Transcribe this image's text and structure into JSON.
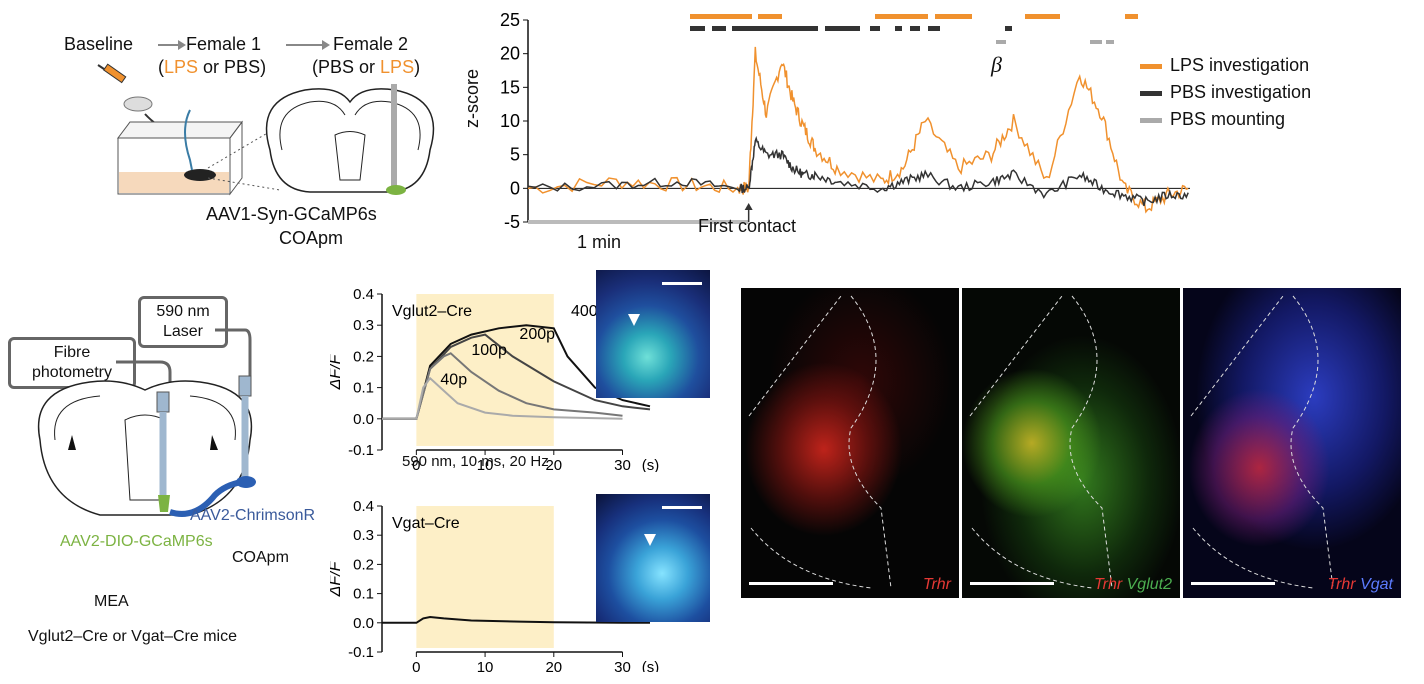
{
  "panel_a": {
    "baseline": "Baseline",
    "female1": "Female 1",
    "female1_sub_lps": "LPS",
    "female1_sub_rest": "or PBS",
    "female2": "Female 2",
    "female2_sub_rest": "PBS or",
    "female2_sub_lps": "LPS",
    "virus": "AAV1-Syn-GCaMP6s",
    "region": "COApm"
  },
  "panel_b": {
    "ylabel": "z-score",
    "yticks": [
      "25",
      "20",
      "15",
      "10",
      "5",
      "0",
      "-5"
    ],
    "beta": "β",
    "legend": [
      {
        "label": "LPS investigation",
        "color": "#f0912e"
      },
      {
        "label": "PBS investigation",
        "color": "#333333"
      },
      {
        "label": "PBS mounting",
        "color": "#aaaaaa"
      }
    ],
    "scale_label": "1 min",
    "first_contact": "First contact"
  },
  "panel_c": {
    "laser": "590 nm Laser",
    "fibre": "Fibre photometry",
    "virus1": "AAV2-DIO-GCaMP6s",
    "virus2": "AAV2-ChrimsonR",
    "region": "COApm",
    "area": "MEA",
    "mice": "Vglut2–Cre or Vgat–Cre mice"
  },
  "panel_d": {
    "ylabel": "ΔF/F",
    "title": "Vglut2–Cre",
    "yticks": [
      "0.4",
      "0.3",
      "0.2",
      "0.1",
      "0.0",
      "-0.1"
    ],
    "xticks": [
      "0",
      "10",
      "20",
      "30"
    ],
    "xunit": "(s)",
    "pulses": [
      "400p",
      "200p",
      "100p",
      "40p"
    ],
    "stim": "590 nm, 10 ms, 20 Hz"
  },
  "panel_e": {
    "ylabel": "ΔF/F",
    "title": "Vgat–Cre",
    "yticks": [
      "0.4",
      "0.3",
      "0.2",
      "0.1",
      "0.0",
      "-0.1"
    ],
    "xticks": [
      "0",
      "10",
      "20",
      "30"
    ],
    "xunit": "(s)"
  },
  "panel_f": {
    "labels": [
      {
        "a": "Trhr",
        "b": "",
        "c": ""
      },
      {
        "a": "Trhr",
        "b": "Vglut2",
        "c": ""
      },
      {
        "a": "Trhr",
        "b": "Vgat",
        "c": ""
      }
    ]
  },
  "chart_data": [
    {
      "type": "line",
      "xlabel": "",
      "ylabel": "z-score",
      "ylim": [
        -5,
        25
      ],
      "series": [
        {
          "name": "LPS investigation",
          "x": [
            -100,
            -60,
            -30,
            -5,
            0,
            3,
            8,
            15,
            20,
            25,
            30,
            40,
            60,
            70,
            80,
            95,
            110,
            120,
            135,
            150,
            160,
            170,
            180,
            190,
            200
          ],
          "values": [
            0,
            1,
            0.5,
            0,
            0,
            20,
            11,
            19,
            13,
            9,
            6,
            3,
            1,
            3,
            10,
            3,
            5,
            10,
            1,
            17,
            11,
            0,
            -3,
            -1,
            0
          ]
        },
        {
          "name": "PBS investigation",
          "x": [
            -100,
            -60,
            -30,
            -5,
            0,
            3,
            8,
            15,
            20,
            25,
            30,
            40,
            60,
            70,
            80,
            95,
            110,
            120,
            135,
            150,
            160,
            170,
            180,
            190,
            200
          ],
          "values": [
            0,
            0.5,
            1,
            0,
            0,
            7,
            5,
            5,
            3,
            2,
            2,
            1,
            0,
            1,
            2,
            0,
            1,
            2,
            -1,
            2,
            0,
            -1,
            -2,
            -1,
            -1
          ]
        }
      ]
    },
    {
      "type": "line",
      "title": "Vglut2–Cre",
      "ylabel": "ΔF/F",
      "xlim": [
        -5,
        34
      ],
      "ylim": [
        -0.1,
        0.4
      ],
      "series": [
        {
          "name": "400p",
          "x": [
            0,
            2,
            5,
            8,
            12,
            16,
            20,
            22,
            26,
            30,
            34
          ],
          "values": [
            0,
            0.17,
            0.24,
            0.27,
            0.29,
            0.3,
            0.29,
            0.2,
            0.1,
            0.06,
            0.04
          ]
        },
        {
          "name": "200p",
          "x": [
            0,
            2,
            5,
            8,
            10,
            14,
            20,
            26,
            30,
            34
          ],
          "values": [
            0,
            0.16,
            0.23,
            0.26,
            0.27,
            0.2,
            0.12,
            0.06,
            0.04,
            0.03
          ]
        },
        {
          "name": "100p",
          "x": [
            0,
            2,
            4,
            5,
            8,
            12,
            16,
            20,
            26,
            30
          ],
          "values": [
            0,
            0.16,
            0.2,
            0.21,
            0.15,
            0.09,
            0.05,
            0.03,
            0.02,
            0.01
          ]
        },
        {
          "name": "40p",
          "x": [
            0,
            1,
            2,
            4,
            6,
            10,
            14,
            20,
            30
          ],
          "values": [
            0,
            0.1,
            0.13,
            0.09,
            0.05,
            0.02,
            0.01,
            0.005,
            0
          ]
        }
      ]
    },
    {
      "type": "line",
      "title": "Vgat–Cre",
      "ylabel": "ΔF/F",
      "xlim": [
        -5,
        34
      ],
      "ylim": [
        -0.1,
        0.4
      ],
      "series": [
        {
          "name": "",
          "x": [
            -5,
            0,
            1,
            2,
            4,
            8,
            15,
            20,
            30,
            34
          ],
          "values": [
            0,
            0,
            0.015,
            0.02,
            0.015,
            0.008,
            0.004,
            0.002,
            0,
            0
          ]
        }
      ]
    }
  ]
}
